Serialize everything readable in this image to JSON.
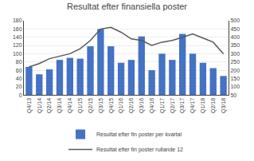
{
  "chart_data": {
    "type": "bar",
    "title": "Resultat efter finansiella poster",
    "categories": [
      "Q4/13",
      "Q1/14",
      "Q2/14",
      "Q3/14",
      "Q4/14",
      "Q1/15",
      "Q2/15",
      "Q3/15",
      "Q4/15",
      "Q1/16",
      "Q2/16",
      "Q3/16",
      "Q4/16",
      "Q1/17",
      "Q2/17",
      "Q3/17",
      "Q4/17",
      "Q1/18",
      "Q2/18",
      "Q3/18"
    ],
    "series": [
      {
        "name": "Resultat efter fin poster per kvartal",
        "type": "bar",
        "color": "#4472c4",
        "values": [
          68,
          50,
          62,
          85,
          90,
          88,
          118,
          160,
          118,
          78,
          85,
          142,
          60,
          100,
          85,
          148,
          100,
          78,
          65,
          46
        ]
      },
      {
        "name": "Resultat efter fin poster rullande 12",
        "type": "line",
        "color": "#595959",
        "axis": "y2",
        "values": [
          220,
          240,
          270,
          285,
          300,
          330,
          380,
          450,
          460,
          430,
          390,
          380,
          350,
          370,
          380,
          400,
          420,
          395,
          370,
          300
        ]
      }
    ],
    "ylim": [
      0,
      180
    ],
    "yticks": [
      0,
      20,
      40,
      60,
      80,
      100,
      120,
      140,
      160,
      180
    ],
    "y2lim": [
      50,
      500
    ],
    "y2ticks": [
      50,
      100,
      150,
      200,
      250,
      300,
      350,
      400,
      450,
      500
    ],
    "grid": true,
    "legend": "bottom"
  }
}
